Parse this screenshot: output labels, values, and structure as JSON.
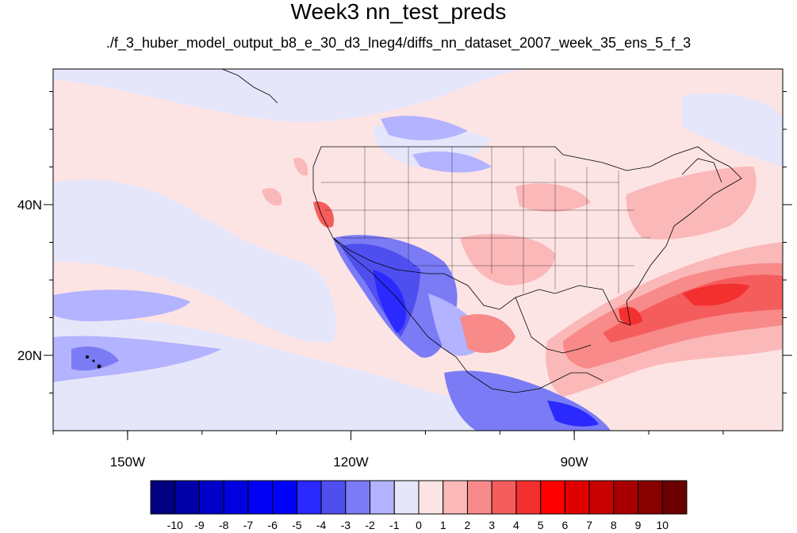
{
  "title": "Week3 nn_test_preds",
  "subtitle": "./f_3_huber_model_output_b8_e_30_d3_lneg4/diffs_nn_dataset_2007_week_35_ens_5_f_3",
  "map": {
    "lon_range": [
      -160,
      -62
    ],
    "lat_range": [
      10,
      58
    ],
    "lon_ticks": [
      {
        "value": -150,
        "label": "150W"
      },
      {
        "value": -120,
        "label": "120W"
      },
      {
        "value": -90,
        "label": "90W"
      }
    ],
    "lat_ticks": [
      {
        "value": 20,
        "label": "20N"
      },
      {
        "value": 40,
        "label": "40N"
      }
    ],
    "colorbar": {
      "labels": [
        "-10",
        "-9",
        "-8",
        "-7",
        "-6",
        "-5",
        "-4",
        "-3",
        "-2",
        "-1",
        "0",
        "1",
        "2",
        "3",
        "4",
        "5",
        "6",
        "7",
        "8",
        "9",
        "10"
      ],
      "colors": [
        "#000080",
        "#0000a8",
        "#0000c8",
        "#0000e0",
        "#0000f5",
        "#0000ff",
        "#2a2aff",
        "#4f4ff0",
        "#7b7bf5",
        "#b3b3ff",
        "#e6e6fa",
        "#fde4e4",
        "#fbb8b8",
        "#f88a8a",
        "#f55d5d",
        "#f33030",
        "#ff0000",
        "#e00000",
        "#c80000",
        "#a80000",
        "#880000",
        "#6a0000"
      ]
    }
  }
}
